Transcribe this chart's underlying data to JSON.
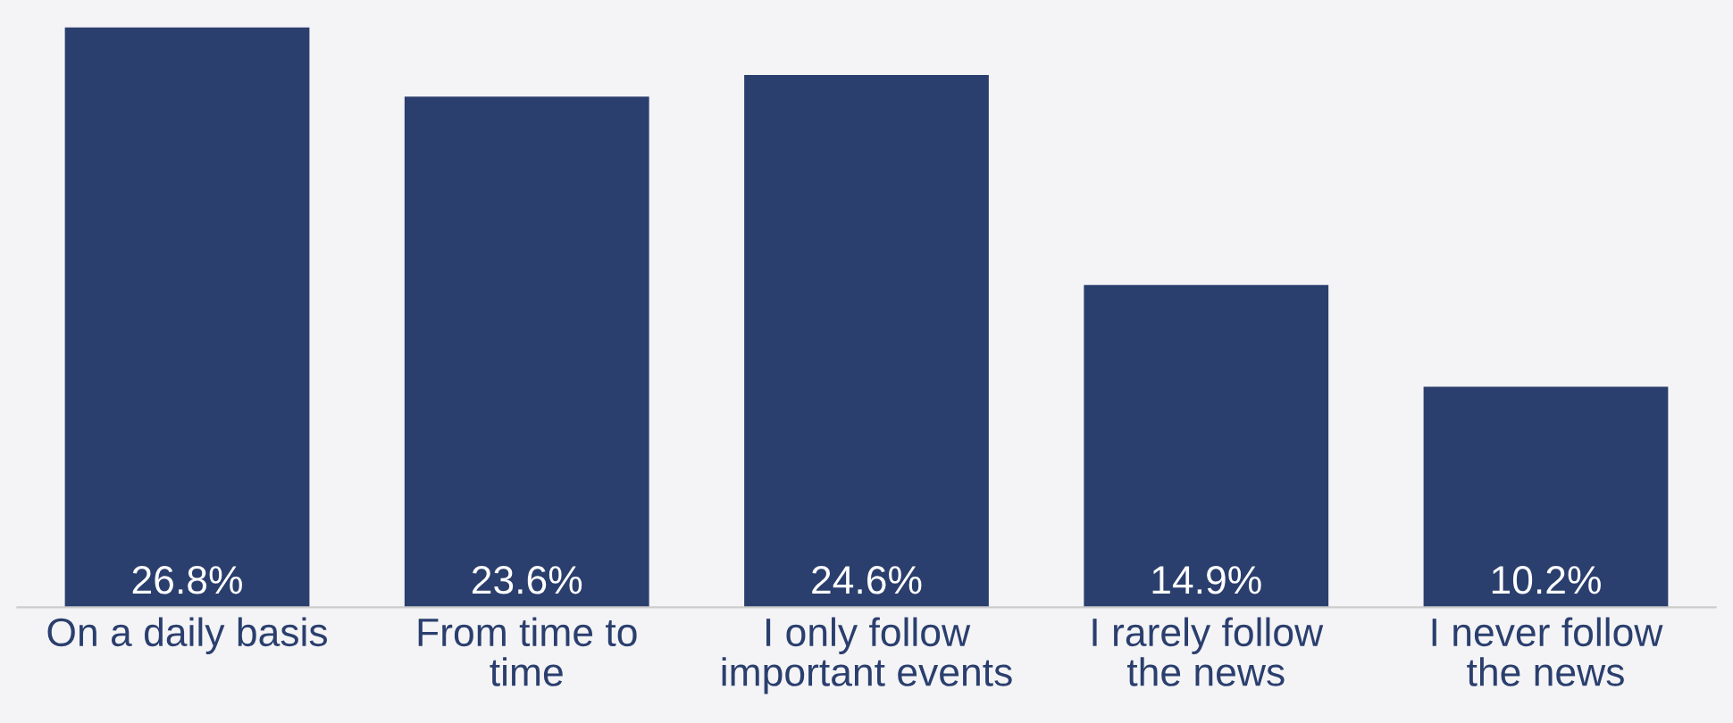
{
  "chart_data": {
    "type": "bar",
    "categories": [
      "On a daily basis",
      "From time to\ntime",
      "I only follow\nimportant events",
      "I rarely follow\nthe news",
      "I never follow\nthe news"
    ],
    "values": [
      26.8,
      23.6,
      24.6,
      14.9,
      10.2
    ],
    "value_labels": [
      "26.8%",
      "23.6%",
      "24.6%",
      "14.9%",
      "10.2%"
    ],
    "color": "#2b3f6e",
    "grid": false,
    "legend": false
  }
}
